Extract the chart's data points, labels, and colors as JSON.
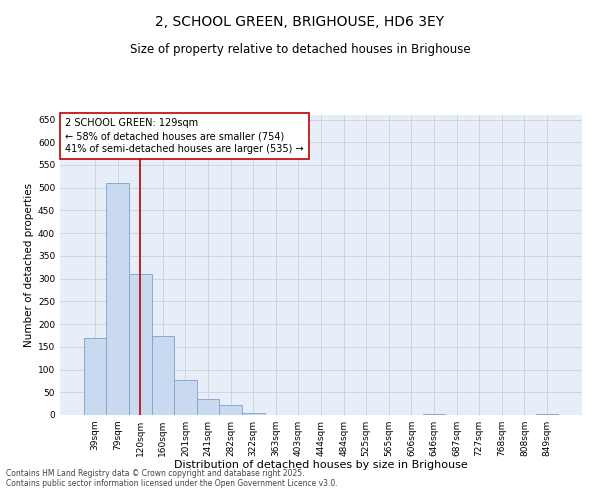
{
  "title": "2, SCHOOL GREEN, BRIGHOUSE, HD6 3EY",
  "subtitle": "Size of property relative to detached houses in Brighouse",
  "xlabel": "Distribution of detached houses by size in Brighouse",
  "ylabel": "Number of detached properties",
  "categories": [
    "39sqm",
    "79sqm",
    "120sqm",
    "160sqm",
    "201sqm",
    "241sqm",
    "282sqm",
    "322sqm",
    "363sqm",
    "403sqm",
    "444sqm",
    "484sqm",
    "525sqm",
    "565sqm",
    "606sqm",
    "646sqm",
    "687sqm",
    "727sqm",
    "768sqm",
    "808sqm",
    "849sqm"
  ],
  "values": [
    170,
    510,
    310,
    173,
    78,
    35,
    22,
    5,
    0,
    0,
    0,
    0,
    0,
    0,
    0,
    3,
    0,
    0,
    0,
    0,
    3
  ],
  "bar_color": "#c9d9ef",
  "bar_edge_color": "#7aa3cc",
  "vline_x_index": 2,
  "vline_color": "#c00000",
  "annotation_text": "2 SCHOOL GREEN: 129sqm\n← 58% of detached houses are smaller (754)\n41% of semi-detached houses are larger (535) →",
  "annotation_box_facecolor": "#ffffff",
  "annotation_box_edgecolor": "#c00000",
  "ylim": [
    0,
    660
  ],
  "yticks": [
    0,
    50,
    100,
    150,
    200,
    250,
    300,
    350,
    400,
    450,
    500,
    550,
    600,
    650
  ],
  "bg_color": "#e8eef8",
  "grid_color": "#c8d0de",
  "footer_line1": "Contains HM Land Registry data © Crown copyright and database right 2025.",
  "footer_line2": "Contains public sector information licensed under the Open Government Licence v3.0.",
  "title_fontsize": 10,
  "subtitle_fontsize": 8.5,
  "xlabel_fontsize": 8,
  "ylabel_fontsize": 7.5,
  "tick_fontsize": 6.5,
  "annot_fontsize": 7,
  "footer_fontsize": 5.5
}
